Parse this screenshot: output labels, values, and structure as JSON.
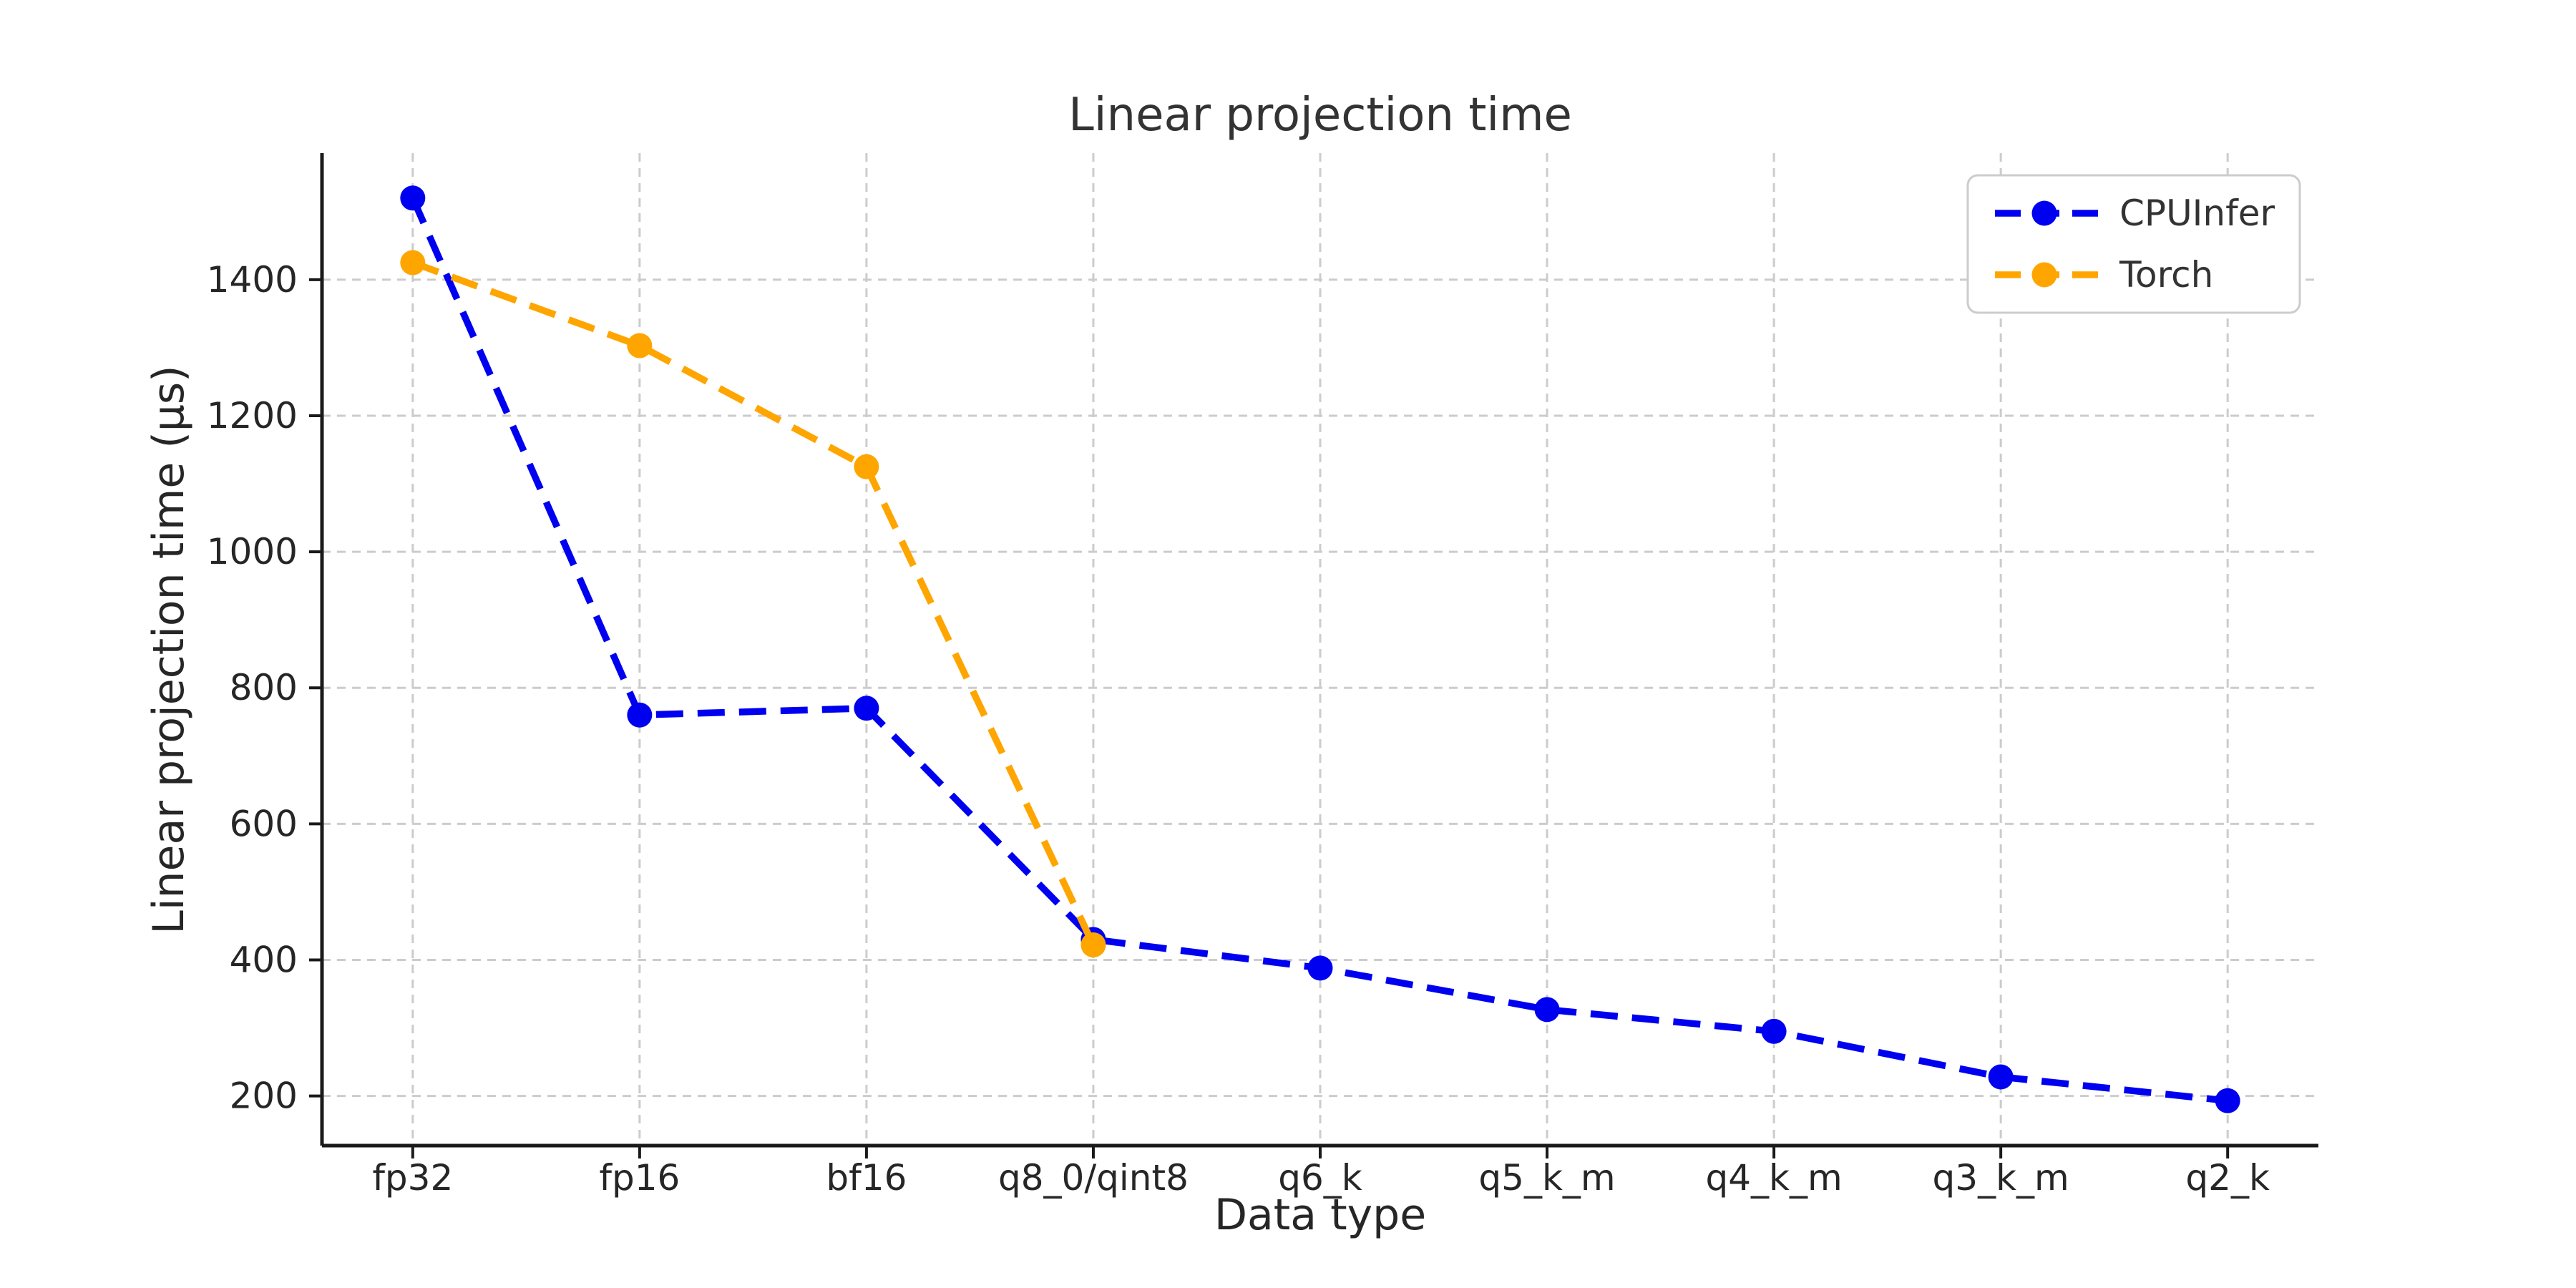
{
  "title": "Linear projection time",
  "axes": {
    "xlabel": "Data type",
    "ylabel": "Linear projection time (µs)",
    "yticks": [
      200,
      400,
      600,
      800,
      1000,
      1200,
      1400
    ],
    "ylim": [
      127,
      1586
    ],
    "grid": true,
    "grid_style": "dashed",
    "spines": [
      "left",
      "bottom"
    ]
  },
  "legend": {
    "position": "upper right",
    "entries": [
      {
        "label": "CPUInfer",
        "color": "#0000f0"
      },
      {
        "label": "Torch",
        "color": "#ffa500"
      }
    ]
  },
  "colors": {
    "cpuinfer_blue": "#0000f0",
    "torch_orange": "#ffa500",
    "grid": "#cccccc",
    "spine": "#1a1a1a",
    "text": "#262626",
    "legend_border": "#cccccc",
    "background": "#ffffff"
  },
  "chart_data": {
    "type": "line",
    "title": "Linear projection time",
    "xlabel": "Data type",
    "ylabel": "Linear projection time (µs)",
    "categories": [
      "fp32",
      "fp16",
      "bf16",
      "q8_0/qint8",
      "q6_k",
      "q5_k_m",
      "q4_k_m",
      "q3_k_m",
      "q2_k"
    ],
    "series": [
      {
        "name": "CPUInfer",
        "color": "#0000f0",
        "marker": "circle",
        "line_style": "dashed",
        "values": [
          1520,
          760,
          770,
          430,
          388,
          327,
          295,
          228,
          193
        ]
      },
      {
        "name": "Torch",
        "color": "#ffa500",
        "marker": "circle",
        "line_style": "dashed",
        "values": [
          1425,
          1303,
          1125,
          422
        ]
      }
    ],
    "yticks": [
      200,
      400,
      600,
      800,
      1000,
      1200,
      1400
    ],
    "ylim": [
      127,
      1586
    ],
    "grid": true,
    "legend_position": "upper right"
  }
}
